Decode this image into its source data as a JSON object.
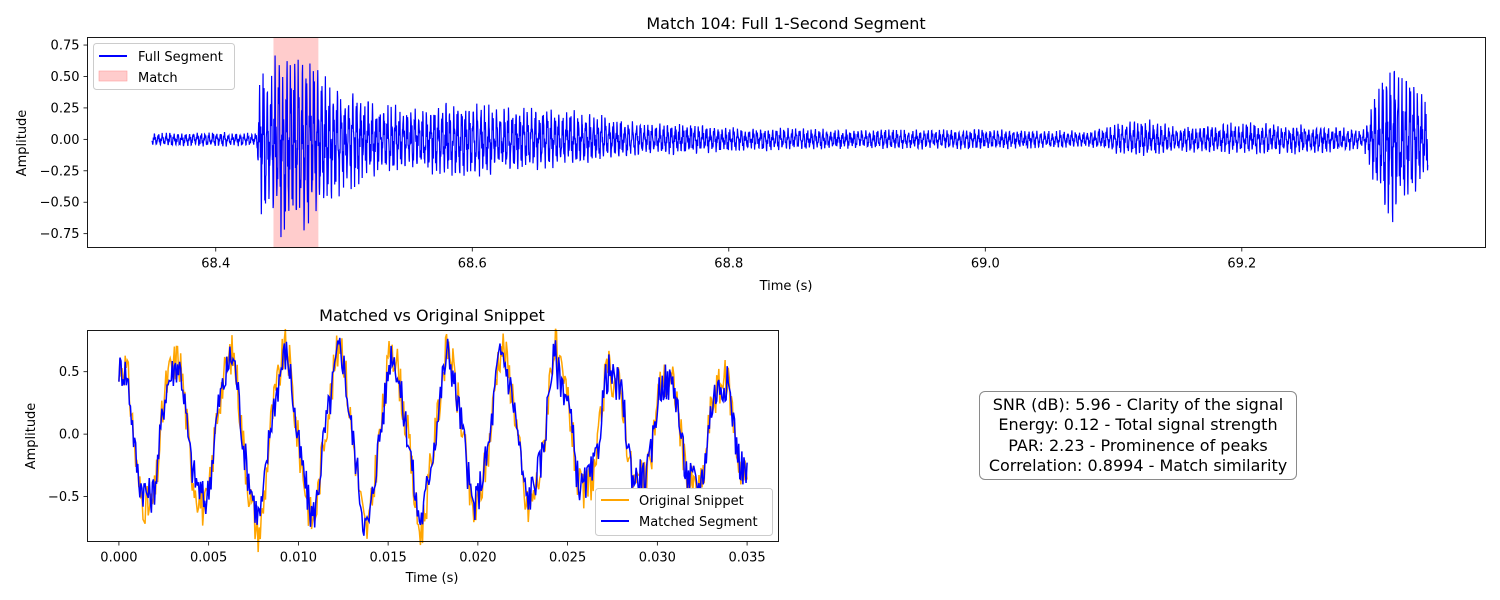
{
  "chart_data": [
    {
      "type": "line",
      "title": "Match 104: Full 1-Second Segment",
      "xlabel": "Time (s)",
      "ylabel": "Amplitude",
      "xlim": [
        68.3,
        69.39
      ],
      "ylim": [
        -0.86,
        0.81
      ],
      "xticks": [
        68.4,
        68.6,
        68.8,
        69.0,
        69.2
      ],
      "xtick_labels": [
        "68.4",
        "68.6",
        "68.8",
        "69.0",
        "69.2"
      ],
      "yticks": [
        -0.75,
        -0.5,
        -0.25,
        0.0,
        0.25,
        0.5,
        0.75
      ],
      "ytick_labels": [
        "−0.75",
        "−0.50",
        "−0.25",
        "0.00",
        "0.25",
        "0.50",
        "0.75"
      ],
      "legend_position": "upper-left",
      "grid": false,
      "series": [
        {
          "name": "Full Segment",
          "color": "#0000ff",
          "kind": "waveform",
          "x_range": [
            68.35,
            69.345
          ],
          "envelope": [
            {
              "t": 68.35,
              "upper": 0.05,
              "lower": -0.05
            },
            {
              "t": 68.4,
              "upper": 0.06,
              "lower": -0.06
            },
            {
              "t": 68.432,
              "upper": 0.05,
              "lower": -0.05
            },
            {
              "t": 68.434,
              "upper": 0.56,
              "lower": -0.6
            },
            {
              "t": 68.45,
              "upper": 0.7,
              "lower": -0.78
            },
            {
              "t": 68.47,
              "upper": 0.68,
              "lower": -0.72
            },
            {
              "t": 68.49,
              "upper": 0.45,
              "lower": -0.5
            },
            {
              "t": 68.52,
              "upper": 0.3,
              "lower": -0.3
            },
            {
              "t": 68.56,
              "upper": 0.25,
              "lower": -0.25
            },
            {
              "t": 68.59,
              "upper": 0.33,
              "lower": -0.35
            },
            {
              "t": 68.63,
              "upper": 0.25,
              "lower": -0.27
            },
            {
              "t": 68.67,
              "upper": 0.25,
              "lower": -0.22
            },
            {
              "t": 68.73,
              "upper": 0.14,
              "lower": -0.14
            },
            {
              "t": 68.8,
              "upper": 0.1,
              "lower": -0.1
            },
            {
              "t": 68.9,
              "upper": 0.08,
              "lower": -0.08
            },
            {
              "t": 69.0,
              "upper": 0.08,
              "lower": -0.08
            },
            {
              "t": 69.08,
              "upper": 0.07,
              "lower": -0.07
            },
            {
              "t": 69.12,
              "upper": 0.18,
              "lower": -0.15
            },
            {
              "t": 69.15,
              "upper": 0.1,
              "lower": -0.1
            },
            {
              "t": 69.2,
              "upper": 0.14,
              "lower": -0.12
            },
            {
              "t": 69.25,
              "upper": 0.12,
              "lower": -0.12
            },
            {
              "t": 69.295,
              "upper": 0.08,
              "lower": -0.08
            },
            {
              "t": 69.31,
              "upper": 0.55,
              "lower": -0.6
            },
            {
              "t": 69.318,
              "upper": 0.72,
              "lower": -0.68
            },
            {
              "t": 69.33,
              "upper": 0.55,
              "lower": -0.55
            },
            {
              "t": 69.345,
              "upper": 0.3,
              "lower": -0.3
            }
          ]
        }
      ],
      "highlight": {
        "name": "Match",
        "color": "#ffcccc",
        "x_range": [
          68.445,
          68.48
        ]
      }
    },
    {
      "type": "line",
      "title": "Matched vs Original Snippet",
      "xlabel": "Time (s)",
      "ylabel": "Amplitude",
      "xlim": [
        -0.00175,
        0.03675
      ],
      "ylim": [
        -0.86,
        0.83
      ],
      "xticks": [
        0.0,
        0.005,
        0.01,
        0.015,
        0.02,
        0.025,
        0.03,
        0.035
      ],
      "xtick_labels": [
        "0.000",
        "0.005",
        "0.010",
        "0.015",
        "0.020",
        "0.025",
        "0.030",
        "0.035"
      ],
      "yticks": [
        -0.5,
        0.0,
        0.5
      ],
      "ytick_labels": [
        "−0.5",
        "0.0",
        "0.5"
      ],
      "legend_position": "lower-right",
      "grid": false,
      "series": [
        {
          "name": "Original Snippet",
          "color": "#ffa500",
          "kind": "sinusoid",
          "period_s": 0.00305,
          "x_range": [
            0.0,
            0.035
          ],
          "peaks": [
            0.7,
            0.7,
            0.71,
            0.72,
            0.8,
            0.68,
            0.74,
            0.78,
            0.62,
            0.57,
            0.52,
            0.5
          ],
          "troughs": [
            -0.72,
            -0.68,
            -0.85,
            -0.72,
            -0.8,
            -0.8,
            -0.68,
            -0.66,
            -0.55,
            -0.5,
            -0.55,
            -0.5
          ]
        },
        {
          "name": "Matched Segment",
          "color": "#0000ff",
          "kind": "sinusoid",
          "period_s": 0.00305,
          "x_range": [
            0.0,
            0.035
          ],
          "peaks": [
            0.65,
            0.65,
            0.68,
            0.68,
            0.72,
            0.62,
            0.68,
            0.7,
            0.6,
            0.55,
            0.52,
            0.48
          ],
          "troughs": [
            -0.6,
            -0.6,
            -0.7,
            -0.68,
            -0.78,
            -0.7,
            -0.6,
            -0.55,
            -0.5,
            -0.45,
            -0.5,
            -0.45
          ]
        }
      ]
    }
  ],
  "metrics": {
    "lines": [
      "SNR (dB): 5.96 - Clarity of the signal",
      "Energy: 0.12 - Total signal strength",
      "PAR: 2.23 - Prominence of peaks",
      "Correlation: 0.8994 - Match similarity"
    ]
  }
}
